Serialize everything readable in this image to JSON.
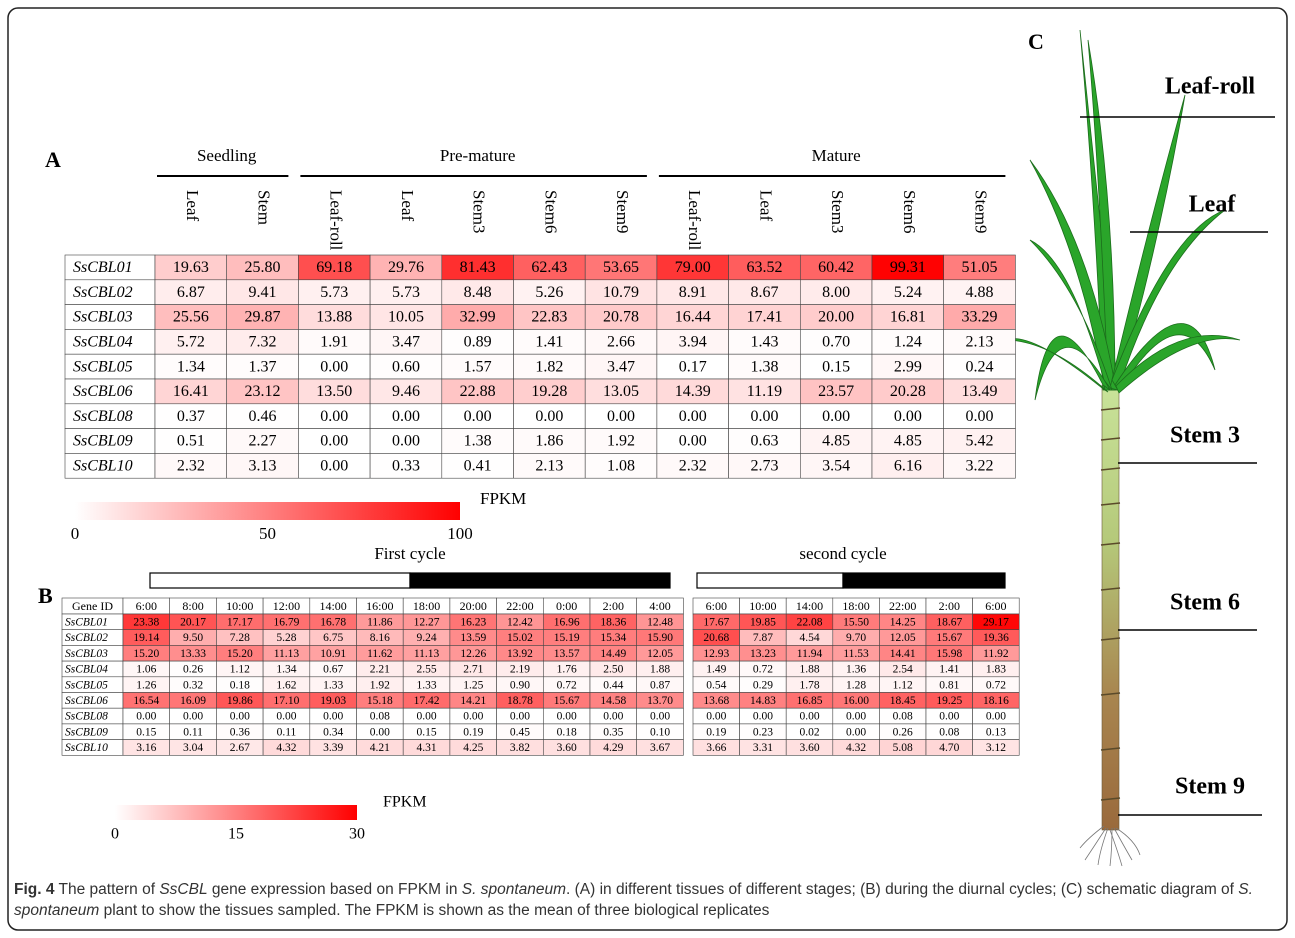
{
  "panel_a": {
    "label": "A",
    "groups": [
      {
        "name": "Seedling",
        "columns": [
          "Leaf",
          "Stem"
        ]
      },
      {
        "name": "Pre-mature",
        "columns": [
          "Leaf-roll",
          "Leaf",
          "Stem3",
          "Stem6",
          "Stem9"
        ]
      },
      {
        "name": "Mature",
        "columns": [
          "Leaf-roll",
          "Leaf",
          "Stem3",
          "Stem6",
          "Stem9"
        ]
      }
    ],
    "genes": [
      "SsCBL01",
      "SsCBL02",
      "SsCBL03",
      "SsCBL04",
      "SsCBL05",
      "SsCBL06",
      "SsCBL08",
      "SsCBL09",
      "SsCBL10"
    ],
    "rows": [
      [
        "19.63",
        "25.80",
        "69.18",
        "29.76",
        "81.43",
        "62.43",
        "53.65",
        "79.00",
        "63.52",
        "60.42",
        "99.31",
        "51.05"
      ],
      [
        "6.87",
        "9.41",
        "5.73",
        "5.73",
        "8.48",
        "5.26",
        "10.79",
        "8.91",
        "8.67",
        "8.00",
        "5.24",
        "4.88"
      ],
      [
        "25.56",
        "29.87",
        "13.88",
        "10.05",
        "32.99",
        "22.83",
        "20.78",
        "16.44",
        "17.41",
        "20.00",
        "16.81",
        "33.29"
      ],
      [
        "5.72",
        "7.32",
        "1.91",
        "3.47",
        "0.89",
        "1.41",
        "2.66",
        "3.94",
        "1.43",
        "0.70",
        "1.24",
        "2.13"
      ],
      [
        "1.34",
        "1.37",
        "0.00",
        "0.60",
        "1.57",
        "1.82",
        "3.47",
        "0.17",
        "1.38",
        "0.15",
        "2.99",
        "0.24"
      ],
      [
        "16.41",
        "23.12",
        "13.50",
        "9.46",
        "22.88",
        "19.28",
        "13.05",
        "14.39",
        "11.19",
        "23.57",
        "20.28",
        "13.49"
      ],
      [
        "0.37",
        "0.46",
        "0.00",
        "0.00",
        "0.00",
        "0.00",
        "0.00",
        "0.00",
        "0.00",
        "0.00",
        "0.00",
        "0.00"
      ],
      [
        "0.51",
        "2.27",
        "0.00",
        "0.00",
        "1.38",
        "1.86",
        "1.92",
        "0.00",
        "0.63",
        "4.85",
        "4.85",
        "5.42"
      ],
      [
        "2.32",
        "3.13",
        "0.00",
        "0.33",
        "0.41",
        "2.13",
        "1.08",
        "2.32",
        "2.73",
        "3.54",
        "6.16",
        "3.22"
      ]
    ],
    "scale": {
      "title": "FPKM",
      "ticks": [
        0,
        50,
        100
      ]
    }
  },
  "panel_b": {
    "label": "B",
    "header_label": "Gene ID",
    "genes": [
      "SsCBL01",
      "SsCBL02",
      "SsCBL03",
      "SsCBL04",
      "SsCBL05",
      "SsCBL06",
      "SsCBL08",
      "SsCBL09",
      "SsCBL10"
    ],
    "cycles": [
      {
        "name": "First cycle",
        "times": [
          "6:00",
          "8:00",
          "10:00",
          "12:00",
          "14:00",
          "16:00",
          "18:00",
          "20:00",
          "22:00",
          "0:00",
          "2:00",
          "4:00"
        ],
        "rows": [
          [
            "23.38",
            "20.17",
            "17.17",
            "16.79",
            "16.78",
            "11.86",
            "12.27",
            "16.23",
            "12.42",
            "16.96",
            "18.36",
            "12.48"
          ],
          [
            "19.14",
            "9.50",
            "7.28",
            "5.28",
            "6.75",
            "8.16",
            "9.24",
            "13.59",
            "15.02",
            "15.19",
            "15.34",
            "15.90"
          ],
          [
            "15.20",
            "13.33",
            "15.20",
            "11.13",
            "10.91",
            "11.62",
            "11.13",
            "12.26",
            "13.92",
            "13.57",
            "14.49",
            "12.05"
          ],
          [
            "1.06",
            "0.26",
            "1.12",
            "1.34",
            "0.67",
            "2.21",
            "2.55",
            "2.71",
            "2.19",
            "1.76",
            "2.50",
            "1.88"
          ],
          [
            "1.26",
            "0.32",
            "0.18",
            "1.62",
            "1.33",
            "1.92",
            "1.33",
            "1.25",
            "0.90",
            "0.72",
            "0.44",
            "0.87"
          ],
          [
            "16.54",
            "16.09",
            "19.86",
            "17.10",
            "19.03",
            "15.18",
            "17.42",
            "14.21",
            "18.78",
            "15.67",
            "14.58",
            "13.70"
          ],
          [
            "0.00",
            "0.00",
            "0.00",
            "0.00",
            "0.00",
            "0.08",
            "0.00",
            "0.00",
            "0.00",
            "0.00",
            "0.00",
            "0.00"
          ],
          [
            "0.15",
            "0.11",
            "0.36",
            "0.11",
            "0.34",
            "0.00",
            "0.15",
            "0.19",
            "0.45",
            "0.18",
            "0.35",
            "0.10"
          ],
          [
            "3.16",
            "3.04",
            "2.67",
            "4.32",
            "3.39",
            "4.21",
            "4.31",
            "4.25",
            "3.82",
            "3.60",
            "4.29",
            "3.67"
          ]
        ]
      },
      {
        "name": "second cycle",
        "times": [
          "6:00",
          "10:00",
          "14:00",
          "18:00",
          "22:00",
          "2:00",
          "6:00"
        ],
        "rows": [
          [
            "17.67",
            "19.85",
            "22.08",
            "15.50",
            "14.25",
            "18.67",
            "29.17"
          ],
          [
            "20.68",
            "7.87",
            "4.54",
            "9.70",
            "12.05",
            "15.67",
            "19.36"
          ],
          [
            "12.93",
            "13.23",
            "11.94",
            "11.53",
            "14.41",
            "15.98",
            "11.92"
          ],
          [
            "1.49",
            "0.72",
            "1.88",
            "1.36",
            "2.54",
            "1.41",
            "1.83"
          ],
          [
            "0.54",
            "0.29",
            "1.78",
            "1.28",
            "1.12",
            "0.81",
            "0.72"
          ],
          [
            "13.68",
            "14.83",
            "16.85",
            "16.00",
            "18.45",
            "19.25",
            "18.16"
          ],
          [
            "0.00",
            "0.00",
            "0.00",
            "0.00",
            "0.08",
            "0.00",
            "0.00"
          ],
          [
            "0.19",
            "0.23",
            "0.02",
            "0.00",
            "0.26",
            "0.08",
            "0.13"
          ],
          [
            "3.66",
            "3.31",
            "3.60",
            "4.32",
            "5.08",
            "4.70",
            "3.12"
          ]
        ]
      }
    ],
    "scale": {
      "title": "FPKM",
      "ticks": [
        0,
        15,
        30
      ]
    }
  },
  "panel_c": {
    "label": "C",
    "tissues": [
      "Leaf-roll",
      "Leaf",
      "Stem 3",
      "Stem 6",
      "Stem 9"
    ]
  },
  "caption": {
    "label": "Fig. 4",
    "parts": [
      " The pattern of ",
      "SsCBL",
      " gene expression based on FPKM in ",
      "S. spontaneum",
      ". (A) in different tissues of different stages; (B) during the diurnal cycles; (C) schematic diagram of ",
      "S. spontaneum",
      " plant to show the tissues sampled. The FPKM is shown as the mean of three biological replicates"
    ]
  }
}
